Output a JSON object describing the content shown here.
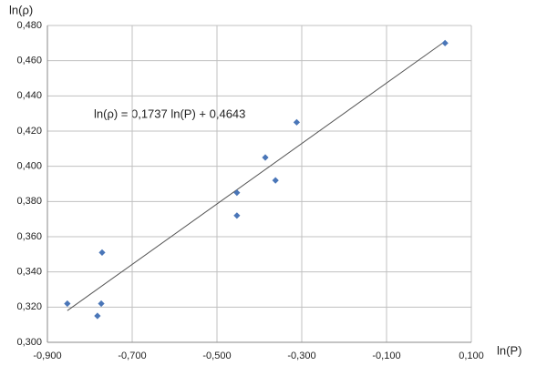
{
  "chart_data": {
    "type": "scatter",
    "x_label": "ln(P)",
    "y_label": "ln(ρ)",
    "annotation": "ln(ρ) = 0,1737 ln(P) + 0,4643",
    "series": [
      {
        "color": "#4a76b8",
        "x": [
          -0.853,
          -0.782,
          -0.773,
          -0.771,
          -0.453,
          -0.453,
          -0.386,
          -0.362,
          -0.312,
          0.038
        ],
        "values": [
          0.322,
          0.315,
          0.322,
          0.351,
          0.372,
          0.385,
          0.405,
          0.392,
          0.425,
          0.47
        ]
      }
    ],
    "trendline": {
      "color": "#555555",
      "x": [
        -0.853,
        0.038
      ],
      "values": [
        0.318,
        0.471
      ]
    },
    "xlim": [
      -0.9,
      0.1
    ],
    "ylim": [
      0.3,
      0.48
    ],
    "xticks": [
      {
        "value": -0.9,
        "label": "-0,900"
      },
      {
        "value": -0.7,
        "label": "-0,700"
      },
      {
        "value": -0.5,
        "label": "-0,500"
      },
      {
        "value": -0.3,
        "label": "-0,300"
      },
      {
        "value": -0.1,
        "label": "-0,100"
      },
      {
        "value": 0.1,
        "label": "0,100"
      }
    ],
    "yticks": [
      {
        "value": 0.3,
        "label": "0,300"
      },
      {
        "value": 0.32,
        "label": "0,320"
      },
      {
        "value": 0.34,
        "label": "0,340"
      },
      {
        "value": 0.36,
        "label": "0,360"
      },
      {
        "value": 0.38,
        "label": "0,380"
      },
      {
        "value": 0.4,
        "label": "0,400"
      },
      {
        "value": 0.42,
        "label": "0,420"
      },
      {
        "value": 0.44,
        "label": "0,440"
      },
      {
        "value": 0.46,
        "label": "0,460"
      },
      {
        "value": 0.48,
        "label": "0,480"
      }
    ],
    "grid": true
  }
}
